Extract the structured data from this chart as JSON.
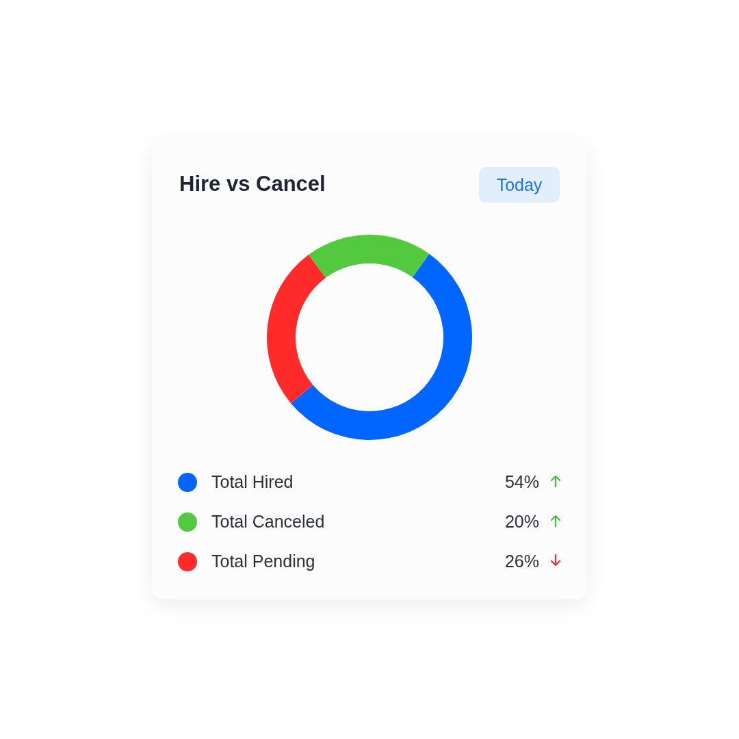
{
  "chart_data": {
    "type": "donut",
    "title": "Hire vs Cancel",
    "annotations": [
      "Today"
    ],
    "categories": [
      "Total Hired",
      "Total Canceled",
      "Total Pending"
    ],
    "values": [
      54,
      20,
      26
    ],
    "colors": [
      "#0066ff",
      "#52c93f",
      "#ff2a2a"
    ],
    "value_labels": [
      "54%",
      "20%",
      "26%"
    ],
    "legend": "bottom"
  }
}
